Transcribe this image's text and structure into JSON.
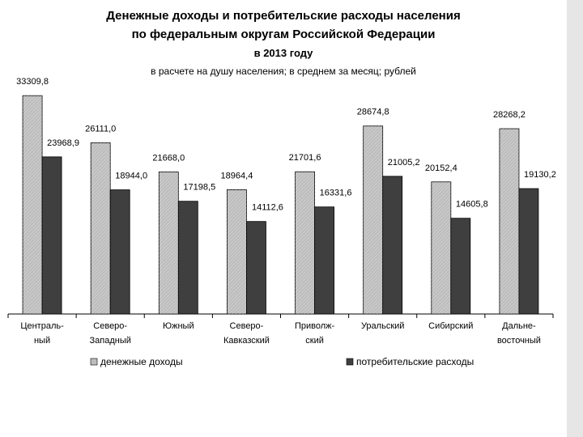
{
  "chart_data": {
    "type": "bar",
    "title": [
      "Денежные доходы и потребительские расходы населения",
      "по федеральным округам Российской Федерации",
      "в 2013 году"
    ],
    "subtitle": "в расчете на душу населения; в среднем за месяц; рублей",
    "categories": [
      "Централь-\nный",
      "Северо-\nЗападный",
      "Южный",
      "Северо-\nКавказский",
      "Приволж-\nский",
      "Уральский",
      "Сибирский",
      "Дальне-\nвосточный"
    ],
    "series": [
      {
        "name": "денежные доходы",
        "color": "#bdbdbd",
        "values": [
          33309.8,
          26111.0,
          21668.0,
          18964.4,
          21701.6,
          28674.8,
          20152.4,
          28268.2
        ],
        "value_labels": [
          "33309,8",
          "26111,0",
          "21668,0",
          "18964,4",
          "21701,6",
          "28674,8",
          "20152,4",
          "28268,2"
        ]
      },
      {
        "name": "потребительские расходы",
        "color": "#3f3f3f",
        "values": [
          23968.9,
          18944.0,
          17198.5,
          14112.6,
          16331.6,
          21005.2,
          14605.8,
          19130.2
        ],
        "value_labels": [
          "23968,9",
          "18944,0",
          "17198,5",
          "14112,6",
          "16331,6",
          "21005,2",
          "14605,8",
          "19130,2"
        ]
      }
    ],
    "ylim": [
      0,
      40000
    ],
    "grid": false
  }
}
